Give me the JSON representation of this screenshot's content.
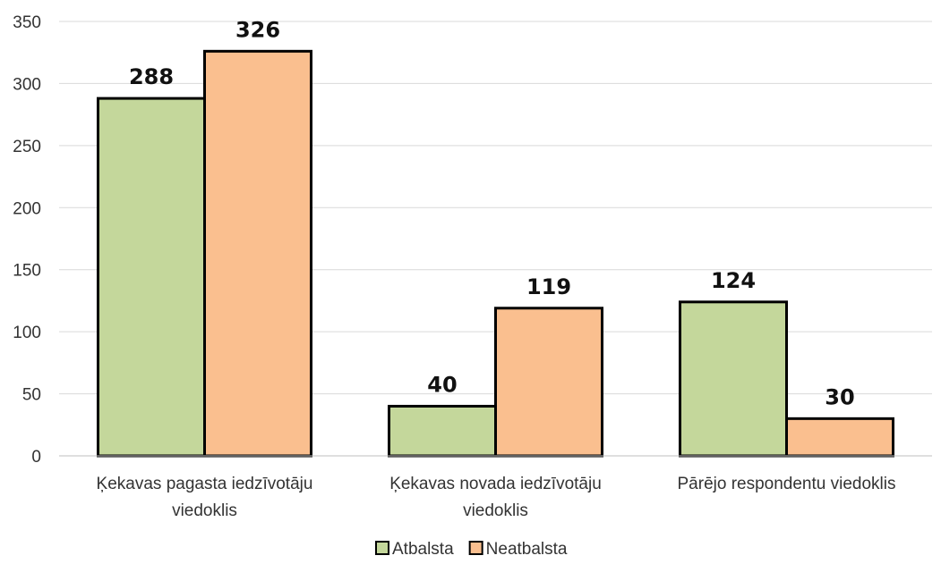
{
  "chart_data": {
    "type": "bar",
    "categories": [
      [
        "Ķekavas pagasta iedzīvotāju",
        "viedoklis"
      ],
      [
        "Ķekavas novada iedzīvotāju",
        "viedoklis"
      ],
      [
        "Pārējo respondentu viedoklis"
      ]
    ],
    "series": [
      {
        "name": "Atbalsta",
        "values": [
          288,
          40,
          124
        ],
        "color": "#c4d79b"
      },
      {
        "name": "Neatbalsta",
        "values": [
          326,
          119,
          30
        ],
        "color": "#fabf8f"
      }
    ],
    "ylim": [
      0,
      350
    ],
    "yticks": [
      0,
      50,
      100,
      150,
      200,
      250,
      300,
      350
    ],
    "grid": true,
    "legend_position": "bottom",
    "bar_border_color": "#000000",
    "grid_color": "#d9d9d9"
  }
}
